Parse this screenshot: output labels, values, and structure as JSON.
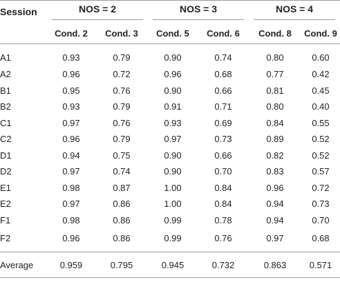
{
  "table": {
    "session_header": "Session",
    "groups": [
      "NOS = 2",
      "NOS = 3",
      "NOS = 4"
    ],
    "conditions": [
      "Cond. 2",
      "Cond. 3",
      "Cond. 5",
      "Cond. 6",
      "Cond. 8",
      "Cond. 9"
    ],
    "rows": [
      {
        "session": "A1",
        "values": [
          "0.93",
          "0.79",
          "0.90",
          "0.74",
          "0.80",
          "0.60"
        ]
      },
      {
        "session": "A2",
        "values": [
          "0.96",
          "0.72",
          "0.96",
          "0.68",
          "0.77",
          "0.42"
        ]
      },
      {
        "session": "B1",
        "values": [
          "0.95",
          "0.76",
          "0.90",
          "0.66",
          "0.81",
          "0.45"
        ]
      },
      {
        "session": "B2",
        "values": [
          "0.93",
          "0.79",
          "0.91",
          "0.71",
          "0.80",
          "0.40"
        ]
      },
      {
        "session": "C1",
        "values": [
          "0.97",
          "0.76",
          "0.93",
          "0.69",
          "0.84",
          "0.55"
        ]
      },
      {
        "session": "C2",
        "values": [
          "0.96",
          "0.79",
          "0.97",
          "0.73",
          "0.89",
          "0.52"
        ]
      },
      {
        "session": "D1",
        "values": [
          "0.94",
          "0.75",
          "0.90",
          "0.66",
          "0.82",
          "0.52"
        ]
      },
      {
        "session": "D2",
        "values": [
          "0.97",
          "0.74",
          "0.90",
          "0.70",
          "0.83",
          "0.57"
        ]
      },
      {
        "session": "E1",
        "values": [
          "0.98",
          "0.87",
          "1.00",
          "0.84",
          "0.96",
          "0.72"
        ]
      },
      {
        "session": "E2",
        "values": [
          "0.97",
          "0.86",
          "1.00",
          "0.84",
          "0.94",
          "0.73"
        ]
      },
      {
        "session": "F1",
        "values": [
          "0.98",
          "0.86",
          "0.99",
          "0.78",
          "0.94",
          "0.70"
        ]
      },
      {
        "session": "F2",
        "values": [
          "0.96",
          "0.86",
          "0.99",
          "0.76",
          "0.97",
          "0.68"
        ]
      }
    ],
    "average": {
      "label": "Average",
      "values": [
        "0.959",
        "0.795",
        "0.945",
        "0.732",
        "0.863",
        "0.571"
      ]
    }
  }
}
